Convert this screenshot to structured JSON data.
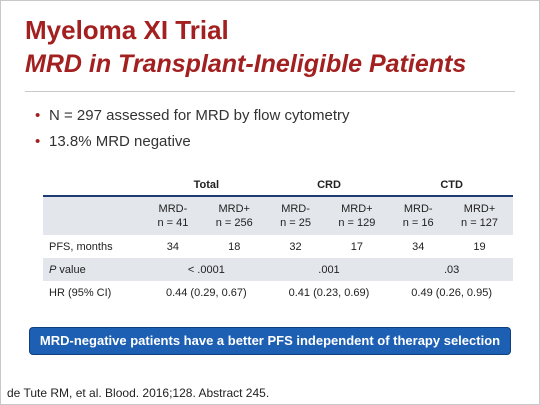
{
  "title": "Myeloma XI Trial",
  "subtitle": "MRD in Transplant-Ineligible Patients",
  "bullets": [
    "N = 297 assessed for MRD by flow cytometry",
    "13.8% MRD negative"
  ],
  "table": {
    "groups": [
      "Total",
      "CRD",
      "CTD"
    ],
    "subheaders": [
      [
        "MRD-",
        "n = 41"
      ],
      [
        "MRD+",
        "n = 256"
      ],
      [
        "MRD-",
        "n = 25"
      ],
      [
        "MRD+",
        "n = 129"
      ],
      [
        "MRD-",
        "n = 16"
      ],
      [
        "MRD+",
        "n = 127"
      ]
    ],
    "rows": [
      {
        "label": "PFS, months",
        "values": [
          "34",
          "18",
          "32",
          "17",
          "34",
          "19"
        ]
      },
      {
        "label_italic": "P",
        "label_rest": " value",
        "values": [
          "< .0001",
          ".001",
          ".03"
        ]
      },
      {
        "label": "HR (95% CI)",
        "values": [
          "0.44 (0.29, 0.67)",
          "0.41 (0.23, 0.69)",
          "0.49 (0.26, 0.95)"
        ]
      }
    ]
  },
  "callout": "MRD-negative patients have a better PFS independent of therapy selection",
  "citation": "de Tute RM, et al. Blood. 2016;128. Abstract 245.",
  "colors": {
    "title": "#a32020",
    "accent_blue": "#1d5fb3",
    "header_rule": "#1f3b73",
    "band": "#e3e6eb"
  }
}
